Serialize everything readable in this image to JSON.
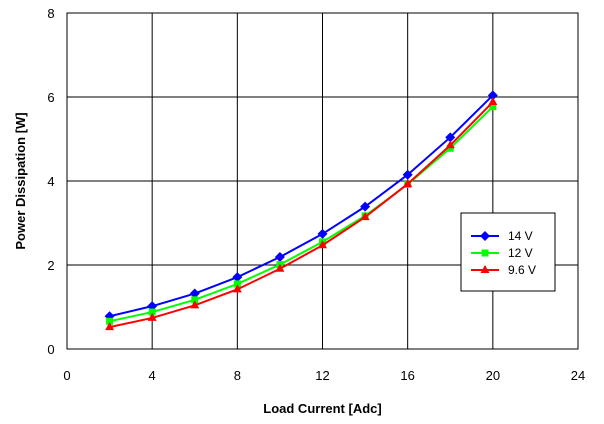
{
  "chart_data": {
    "type": "line",
    "title": "",
    "xlabel": "Load Current [Adc]",
    "ylabel": "Power Dissipation [W]",
    "xlim": [
      0,
      24
    ],
    "ylim": [
      0,
      8
    ],
    "xticks": [
      0,
      4,
      8,
      12,
      16,
      20,
      24
    ],
    "yticks": [
      0,
      2,
      4,
      6,
      8
    ],
    "grid": true,
    "legend_position": "right",
    "x": [
      2,
      4,
      6,
      8,
      10,
      12,
      14,
      16,
      18,
      20
    ],
    "series": [
      {
        "name": "14 V",
        "color": "#0000ff",
        "marker": "diamond",
        "values": [
          0.78,
          1.02,
          1.32,
          1.71,
          2.19,
          2.74,
          3.39,
          4.15,
          5.04,
          6.04
        ]
      },
      {
        "name": "12 V",
        "color": "#00ff00",
        "marker": "square",
        "values": [
          0.66,
          0.88,
          1.17,
          1.55,
          2.01,
          2.55,
          3.17,
          3.92,
          4.78,
          5.77
        ]
      },
      {
        "name": "9.6 V",
        "color": "#ff0000",
        "marker": "triangle",
        "values": [
          0.52,
          0.74,
          1.04,
          1.42,
          1.91,
          2.47,
          3.14,
          3.93,
          4.85,
          5.88
        ]
      }
    ]
  }
}
